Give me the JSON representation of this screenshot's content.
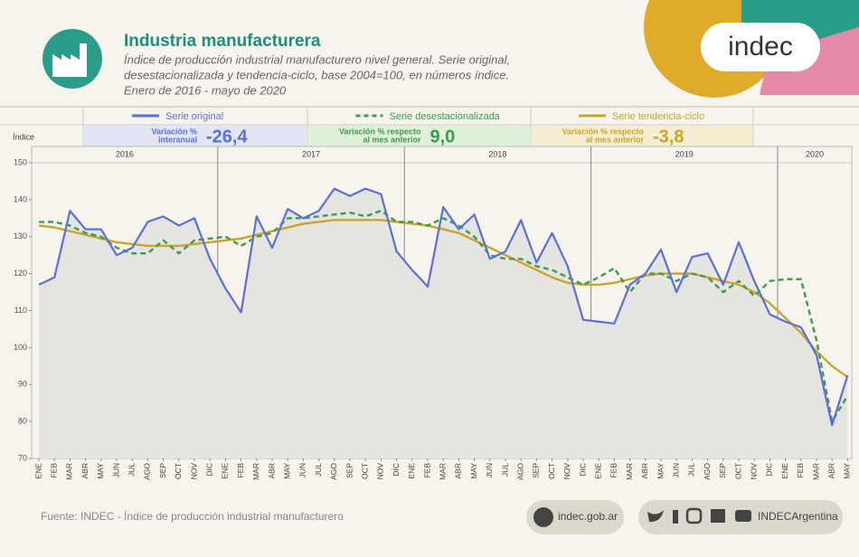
{
  "header": {
    "title": "Industria manufacturera",
    "subtitle": [
      "Índice de producción industrial manufacturero nivel general. Serie original,",
      "desestacionalizada y tendencia-ciclo, base 2004=100, en números índice.",
      "Enero de 2016 - mayo de 2020"
    ],
    "logo": "indec"
  },
  "chart_data": {
    "type": "line",
    "y_label": "Índice",
    "categories": [
      "ENE",
      "FEB",
      "MAR",
      "ABR",
      "MAY",
      "JUN",
      "JUL",
      "AGO",
      "SEP",
      "OCT",
      "NOV",
      "DIC",
      "ENE",
      "FEB",
      "MAR",
      "ABR",
      "MAY",
      "JUN",
      "JUL",
      "AGO",
      "SEP",
      "OCT",
      "NOV",
      "DIC",
      "ENE",
      "FEB",
      "MAR",
      "ABR",
      "MAY",
      "JUN",
      "JUL",
      "AGO",
      "SEP",
      "OCT",
      "NOV",
      "DIC",
      "ENE",
      "FEB",
      "MAR",
      "ABR",
      "MAY",
      "JUN",
      "JUL",
      "AGO",
      "SEP",
      "OCT",
      "NOV",
      "DIC",
      "ENE",
      "FEB",
      "MAR",
      "ABR",
      "MAY"
    ],
    "years": [
      "2016",
      "2017",
      "2018",
      "2019",
      "2020"
    ],
    "series": [
      {
        "name": "Serie original",
        "color": "#5a6fd8",
        "values": [
          117,
          119,
          137,
          132,
          132,
          125,
          127,
          134,
          135.5,
          133,
          135,
          124,
          116,
          109.5,
          135.5,
          127,
          137.5,
          135,
          137,
          143,
          141,
          143,
          141.5,
          126,
          121,
          116.5,
          138,
          132,
          136,
          124,
          126,
          134.5,
          123,
          131,
          122,
          107.5,
          107,
          106.5,
          117,
          120,
          126.5,
          115,
          124.5,
          125.5,
          117,
          128.5,
          118,
          109,
          107,
          105.5,
          98,
          79,
          92.5
        ]
      },
      {
        "name": "Serie desestacionalizada",
        "color": "#3f9a4c",
        "values": [
          134,
          134,
          133,
          131,
          130,
          127,
          125.5,
          125.5,
          129,
          125.5,
          129,
          129.5,
          130,
          127.5,
          130,
          131,
          135,
          135,
          135.5,
          136,
          136.5,
          135.5,
          137,
          134,
          134,
          133,
          135,
          133,
          130,
          125,
          124,
          124,
          122,
          121,
          119,
          117,
          119,
          121.5,
          115,
          120,
          120,
          118,
          120,
          119,
          115,
          118,
          114,
          118,
          118.5,
          118.5,
          102,
          80,
          87
        ]
      },
      {
        "name": "Serie tendencia-ciclo",
        "color": "#c9a52a",
        "values": [
          133,
          132.5,
          131.5,
          130.5,
          129.5,
          128.5,
          128,
          127.5,
          127.5,
          127.5,
          128,
          128.5,
          129,
          129.5,
          130.5,
          131.5,
          132.5,
          133.5,
          134,
          134.5,
          134.5,
          134.5,
          134.5,
          134,
          133.5,
          133,
          132,
          131,
          129,
          127,
          125,
          123,
          121,
          119,
          117.5,
          117,
          117,
          117.5,
          118.5,
          119.5,
          120,
          120,
          120,
          119,
          118,
          117,
          115,
          112,
          108,
          104,
          99,
          95,
          92
        ]
      }
    ],
    "stats": [
      {
        "label": [
          "Variación %",
          "interanual"
        ],
        "value": -26.4,
        "value_label": "-26,4"
      },
      {
        "label": [
          "Variación % respecto",
          "al mes anterior"
        ],
        "value": 9.0,
        "value_label": "9,0"
      },
      {
        "label": [
          "Variación % respecto",
          "al mes anterior"
        ],
        "value": -3.8,
        "value_label": "-3,8"
      }
    ],
    "ylim": [
      70,
      150
    ],
    "yticks": [
      70,
      80,
      90,
      100,
      110,
      120,
      130,
      140,
      150
    ],
    "grid": false
  },
  "footer": {
    "source": "Fuente: INDEC - Índice de producción industrial manufacturero",
    "website": "indec.gob.ar",
    "social": "INDECArgentina"
  }
}
